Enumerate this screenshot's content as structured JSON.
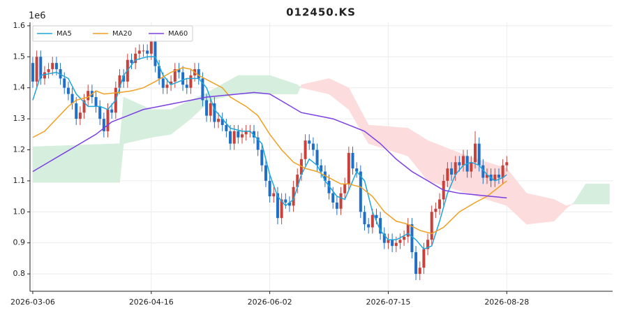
{
  "chart_data": {
    "type": "candlestick",
    "title": "012450.KS",
    "y_offset_label": "1e6",
    "up_color": "#c8423c",
    "down_color": "#1f6fc9",
    "grid": true,
    "legend": "upper left",
    "xlim": [
      -0.7,
      146.8
    ],
    "ylim": [
      0.744,
      1.611
    ],
    "xticks": [
      {
        "value": 0,
        "label": "2026-03-06"
      },
      {
        "value": 30,
        "label": "2026-04-16"
      },
      {
        "value": 60,
        "label": "2026-06-02"
      },
      {
        "value": 90,
        "label": "2026-07-15"
      },
      {
        "value": 120,
        "label": "2026-08-28"
      }
    ],
    "yticks": [
      0.8,
      0.9,
      {
        "value": 1,
        "label": "1.0"
      },
      1.1,
      1.2,
      1.3,
      1.4,
      1.5,
      1.6
    ],
    "candles": {
      "x": [
        0,
        1,
        2,
        3,
        4,
        5,
        6,
        7,
        8,
        9,
        10,
        11,
        12,
        13,
        14,
        15,
        16,
        17,
        18,
        19,
        20,
        21,
        22,
        23,
        24,
        25,
        26,
        27,
        28,
        29,
        30,
        31,
        32,
        33,
        34,
        35,
        36,
        37,
        38,
        39,
        40,
        41,
        42,
        43,
        44,
        45,
        46,
        47,
        48,
        49,
        50,
        51,
        52,
        53,
        54,
        55,
        56,
        57,
        58,
        59,
        60,
        61,
        62,
        63,
        64,
        65,
        66,
        67,
        68,
        69,
        70,
        71,
        72,
        73,
        74,
        75,
        76,
        77,
        78,
        79,
        80,
        81,
        82,
        83,
        84,
        85,
        86,
        87,
        88,
        89,
        90,
        91,
        92,
        93,
        94,
        95,
        96,
        97,
        98,
        99,
        100,
        101,
        102,
        103,
        104,
        105,
        106,
        107,
        108,
        109,
        110,
        111,
        112,
        113,
        114,
        115,
        116,
        117,
        118,
        119,
        120
      ],
      "open": [
        1.48,
        1.42,
        1.5,
        1.43,
        1.45,
        1.46,
        1.48,
        1.46,
        1.43,
        1.4,
        1.38,
        1.35,
        1.3,
        1.32,
        1.36,
        1.39,
        1.37,
        1.34,
        1.3,
        1.26,
        1.33,
        1.32,
        1.4,
        1.44,
        1.42,
        1.49,
        1.48,
        1.51,
        1.52,
        1.52,
        1.51,
        1.55,
        1.47,
        1.43,
        1.4,
        1.41,
        1.42,
        1.46,
        1.45,
        1.41,
        1.4,
        1.44,
        1.46,
        1.43,
        1.36,
        1.31,
        1.35,
        1.29,
        1.3,
        1.28,
        1.26,
        1.22,
        1.26,
        1.24,
        1.25,
        1.26,
        1.26,
        1.24,
        1.2,
        1.15,
        1.1,
        1.05,
        1.06,
        0.98,
        1.04,
        1.03,
        1.02,
        1.08,
        1.12,
        1.17,
        1.23,
        1.22,
        1.2,
        1.15,
        1.13,
        1.1,
        1.06,
        1.03,
        1.01,
        1.06,
        1.09,
        1.19,
        1.14,
        1.13,
        1.0,
        0.96,
        0.95,
        0.99,
        0.98,
        0.93,
        0.9,
        0.91,
        0.89,
        0.9,
        0.91,
        0.92,
        0.96,
        0.87,
        0.8,
        0.82,
        0.88,
        0.91,
        1.0,
        1.01,
        1.04,
        1.1,
        1.14,
        1.12,
        1.16,
        1.15,
        1.18,
        1.13,
        1.16,
        1.22,
        1.15,
        1.11,
        1.12,
        1.1,
        1.12,
        1.11,
        1.15
      ],
      "high": [
        1.5,
        1.52,
        1.52,
        1.47,
        1.48,
        1.5,
        1.5,
        1.48,
        1.45,
        1.42,
        1.4,
        1.37,
        1.34,
        1.38,
        1.41,
        1.41,
        1.39,
        1.36,
        1.32,
        1.35,
        1.35,
        1.42,
        1.46,
        1.46,
        1.51,
        1.51,
        1.53,
        1.54,
        1.54,
        1.54,
        1.57,
        1.57,
        1.49,
        1.45,
        1.43,
        1.44,
        1.48,
        1.48,
        1.47,
        1.43,
        1.46,
        1.48,
        1.48,
        1.45,
        1.38,
        1.37,
        1.37,
        1.32,
        1.32,
        1.3,
        1.28,
        1.28,
        1.28,
        1.27,
        1.28,
        1.28,
        1.28,
        1.26,
        1.22,
        1.17,
        1.12,
        1.08,
        1.08,
        1.06,
        1.06,
        1.05,
        1.1,
        1.14,
        1.19,
        1.25,
        1.25,
        1.24,
        1.22,
        1.17,
        1.15,
        1.12,
        1.08,
        1.05,
        1.08,
        1.11,
        1.21,
        1.21,
        1.16,
        1.15,
        1.02,
        0.98,
        1.01,
        1.01,
        1.0,
        0.95,
        0.93,
        0.93,
        0.92,
        0.93,
        0.94,
        0.98,
        0.98,
        0.89,
        0.84,
        0.9,
        0.93,
        1.02,
        1.03,
        1.06,
        1.12,
        1.16,
        1.16,
        1.18,
        1.18,
        1.2,
        1.2,
        1.18,
        1.26,
        1.24,
        1.17,
        1.14,
        1.14,
        1.14,
        1.14,
        1.17,
        1.18
      ],
      "low": [
        1.4,
        1.4,
        1.41,
        1.41,
        1.43,
        1.44,
        1.44,
        1.41,
        1.38,
        1.36,
        1.33,
        1.28,
        1.28,
        1.3,
        1.34,
        1.35,
        1.32,
        1.28,
        1.24,
        1.24,
        1.3,
        1.3,
        1.38,
        1.4,
        1.4,
        1.46,
        1.46,
        1.49,
        1.5,
        1.49,
        1.49,
        1.45,
        1.41,
        1.38,
        1.38,
        1.39,
        1.4,
        1.43,
        1.39,
        1.38,
        1.38,
        1.42,
        1.41,
        1.34,
        1.29,
        1.29,
        1.27,
        1.27,
        1.26,
        1.24,
        1.2,
        1.2,
        1.22,
        1.22,
        1.23,
        1.24,
        1.22,
        1.18,
        1.13,
        1.08,
        1.03,
        1.03,
        0.96,
        0.96,
        1.01,
        1.0,
        1.0,
        1.06,
        1.1,
        1.15,
        1.2,
        1.18,
        1.13,
        1.11,
        1.08,
        1.04,
        1.01,
        0.99,
        0.99,
        1.04,
        1.07,
        1.12,
        1.11,
        0.98,
        0.94,
        0.93,
        0.93,
        0.96,
        0.91,
        0.88,
        0.88,
        0.87,
        0.87,
        0.88,
        0.89,
        0.9,
        0.85,
        0.78,
        0.78,
        0.8,
        0.86,
        0.89,
        0.98,
        0.99,
        1.02,
        1.08,
        1.1,
        1.1,
        1.13,
        1.13,
        1.11,
        1.11,
        1.14,
        1.13,
        1.09,
        1.09,
        1.08,
        1.08,
        1.09,
        1.09,
        1.13
      ],
      "close": [
        1.42,
        1.5,
        1.43,
        1.45,
        1.46,
        1.48,
        1.46,
        1.43,
        1.4,
        1.38,
        1.35,
        1.3,
        1.32,
        1.36,
        1.39,
        1.37,
        1.34,
        1.3,
        1.26,
        1.33,
        1.32,
        1.4,
        1.44,
        1.42,
        1.49,
        1.48,
        1.51,
        1.52,
        1.52,
        1.51,
        1.55,
        1.47,
        1.43,
        1.4,
        1.41,
        1.42,
        1.46,
        1.45,
        1.41,
        1.4,
        1.44,
        1.46,
        1.43,
        1.36,
        1.31,
        1.35,
        1.29,
        1.3,
        1.28,
        1.26,
        1.22,
        1.26,
        1.24,
        1.25,
        1.26,
        1.26,
        1.24,
        1.2,
        1.15,
        1.1,
        1.05,
        1.06,
        0.98,
        1.04,
        1.03,
        1.02,
        1.08,
        1.12,
        1.17,
        1.23,
        1.22,
        1.2,
        1.15,
        1.13,
        1.1,
        1.06,
        1.03,
        1.01,
        1.06,
        1.09,
        1.19,
        1.14,
        1.13,
        1.0,
        0.96,
        0.95,
        0.99,
        0.98,
        0.93,
        0.9,
        0.91,
        0.89,
        0.9,
        0.91,
        0.92,
        0.96,
        0.87,
        0.8,
        0.82,
        0.88,
        0.91,
        1.0,
        1.01,
        1.04,
        1.1,
        1.14,
        1.12,
        1.16,
        1.15,
        1.18,
        1.13,
        1.16,
        1.22,
        1.15,
        1.11,
        1.12,
        1.1,
        1.12,
        1.11,
        1.15,
        1.16
      ]
    },
    "series": [
      {
        "name": "MA5",
        "color": "#1da6dc",
        "x": [
          0,
          2,
          6,
          9,
          11,
          14,
          17,
          19,
          21,
          23,
          26,
          29,
          31,
          33,
          35,
          37,
          39,
          42,
          44,
          46,
          48,
          50,
          53,
          55,
          58,
          60,
          62,
          64,
          66,
          68,
          70,
          72,
          74,
          77,
          79,
          80,
          82,
          84,
          86,
          88,
          90,
          92,
          95,
          97,
          99,
          101,
          103,
          105,
          107,
          109,
          111,
          113,
          115,
          117,
          119,
          120
        ],
        "values": [
          1.36,
          1.44,
          1.45,
          1.43,
          1.38,
          1.34,
          1.34,
          1.33,
          1.36,
          1.44,
          1.49,
          1.5,
          1.5,
          1.44,
          1.41,
          1.42,
          1.43,
          1.43,
          1.4,
          1.33,
          1.3,
          1.27,
          1.26,
          1.26,
          1.22,
          1.12,
          1.05,
          1.02,
          1.04,
          1.12,
          1.17,
          1.15,
          1.1,
          1.05,
          1.04,
          1.07,
          1.13,
          1.1,
          1.0,
          0.94,
          0.91,
          0.91,
          0.93,
          0.91,
          0.88,
          0.89,
          0.97,
          1.06,
          1.12,
          1.15,
          1.16,
          1.15,
          1.12,
          1.1,
          1.11,
          1.12
        ]
      },
      {
        "name": "MA20",
        "color": "#f0a020",
        "x": [
          0,
          3,
          6,
          9,
          11,
          14,
          16,
          18,
          22,
          25,
          28,
          31,
          35,
          38,
          40,
          42,
          45,
          48,
          50,
          54,
          57,
          60,
          63,
          66,
          69,
          72,
          75,
          78,
          80,
          83,
          86,
          89,
          92,
          95,
          98,
          101,
          104,
          108,
          112,
          115,
          118,
          120
        ],
        "values": [
          1.24,
          1.26,
          1.3,
          1.34,
          1.36,
          1.37,
          1.39,
          1.38,
          1.385,
          1.39,
          1.4,
          1.42,
          1.45,
          1.465,
          1.46,
          1.44,
          1.42,
          1.4,
          1.37,
          1.34,
          1.31,
          1.25,
          1.2,
          1.16,
          1.14,
          1.13,
          1.11,
          1.09,
          1.09,
          1.08,
          1.05,
          1.0,
          0.97,
          0.96,
          0.94,
          0.93,
          0.95,
          1.0,
          1.03,
          1.05,
          1.08,
          1.1
        ]
      },
      {
        "name": "MA60",
        "color": "#7b3fe4",
        "x": [
          0,
          4,
          8,
          12,
          16,
          20,
          24,
          28,
          32,
          36,
          40,
          44,
          48,
          52,
          56,
          60,
          64,
          68,
          72,
          76,
          80,
          84,
          88,
          92,
          96,
          100,
          104,
          108,
          112,
          116,
          120
        ],
        "values": [
          1.13,
          1.16,
          1.19,
          1.22,
          1.25,
          1.29,
          1.31,
          1.33,
          1.34,
          1.35,
          1.36,
          1.37,
          1.375,
          1.38,
          1.385,
          1.38,
          1.35,
          1.32,
          1.31,
          1.3,
          1.28,
          1.26,
          1.22,
          1.17,
          1.13,
          1.1,
          1.07,
          1.06,
          1.055,
          1.05,
          1.045
        ]
      }
    ],
    "cloud": {
      "bull_color": "#d6eedd",
      "bear_color": "#fcdcdc",
      "x": [
        0,
        22,
        23,
        30,
        35,
        40,
        45,
        52,
        60,
        67,
        68,
        75,
        80,
        85,
        95,
        100,
        110,
        120,
        125,
        132,
        135,
        137,
        140,
        146
      ],
      "span_a": [
        1.21,
        1.22,
        1.37,
        1.33,
        1.33,
        1.36,
        1.39,
        1.44,
        1.44,
        1.41,
        1.4,
        1.38,
        1.33,
        1.22,
        1.18,
        1.1,
        1.06,
        1.02,
        0.96,
        0.97,
        1.01,
        1.03,
        1.09,
        1.09
      ],
      "span_b": [
        1.095,
        1.095,
        1.22,
        1.24,
        1.25,
        1.3,
        1.36,
        1.38,
        1.38,
        1.38,
        1.41,
        1.43,
        1.4,
        1.28,
        1.27,
        1.23,
        1.18,
        1.14,
        1.06,
        1.04,
        1.02,
        1.025,
        1.025,
        1.025
      ]
    }
  }
}
